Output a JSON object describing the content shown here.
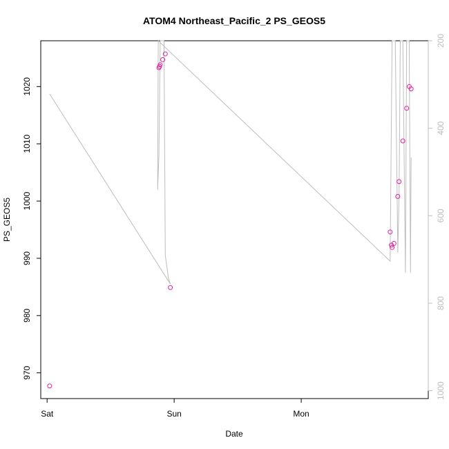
{
  "chart_data": {
    "type": "scatter",
    "title": "ATOM4 Northeast_Pacific_2 PS_GEOS5",
    "xlabel": "Date",
    "ylabel": "PS_GEOS5",
    "x_ticks": [
      "Sat",
      "Sun",
      "Mon"
    ],
    "x_range_days": [
      -0.05,
      3.0
    ],
    "ylim": [
      965.5,
      1028.0
    ],
    "y_ticks": [
      970,
      980,
      990,
      1000,
      1010,
      1020
    ],
    "right_axis": {
      "ticks": [
        200,
        400,
        600,
        800,
        1000
      ],
      "range": [
        200,
        1018
      ],
      "reversed": true,
      "color": "#bdbdbd"
    },
    "points": {
      "color": "#e020a0",
      "x": [
        0.02,
        0.88,
        0.885,
        0.89,
        0.91,
        0.93,
        0.97,
        2.7,
        2.71,
        2.715,
        2.73,
        2.76,
        2.77,
        2.8,
        2.83,
        2.85,
        2.865
      ],
      "y": [
        967.7,
        1023.3,
        1023.5,
        1023.8,
        1024.7,
        1025.7,
        984.9,
        994.6,
        992.3,
        991.9,
        992.6,
        1000.8,
        1003.4,
        1010.5,
        1016.2,
        1020.0,
        1019.6
      ]
    },
    "line": {
      "color": "#bdbdbd",
      "x": [
        0.02,
        0.97,
        0.955,
        0.93,
        0.92,
        0.9,
        0.89,
        0.88,
        0.87,
        0.875,
        2.7,
        2.715,
        2.72,
        2.74,
        2.76,
        2.77,
        2.78,
        2.79,
        2.8,
        2.82,
        2.83,
        2.84,
        2.85,
        2.86,
        2.865,
        2.87
      ],
      "y": [
        1018.7,
        985.5,
        986.5,
        990.5,
        1028.0,
        1028.0,
        1028.0,
        1008.0,
        1002.0,
        1028.0,
        989.5,
        1028.0,
        1028.0,
        1028.0,
        991.0,
        1001.0,
        1028.0,
        1028.0,
        1028.0,
        987.5,
        1028.0,
        1028.0,
        1028.0,
        987.5,
        1007.5,
        1007.5
      ]
    }
  }
}
